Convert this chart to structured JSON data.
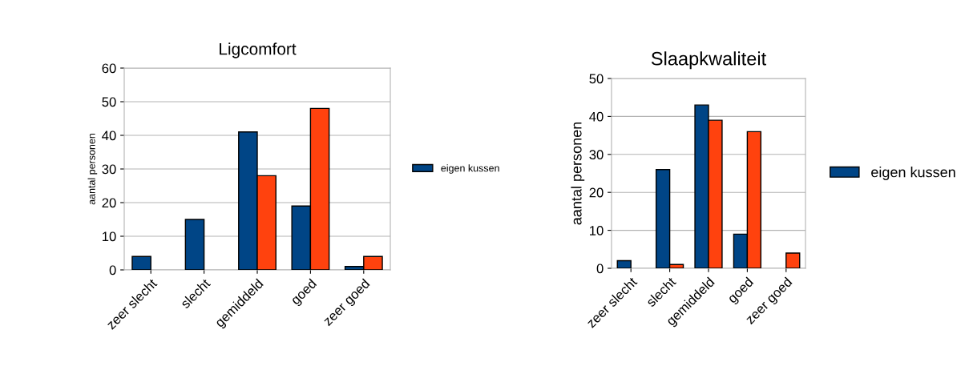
{
  "chart_data": [
    {
      "type": "bar",
      "title": "Ligcomfort",
      "ylabel": "aantal personen",
      "categories": [
        "zeer slecht",
        "slecht",
        "gemiddeld",
        "goed",
        "zeer goed"
      ],
      "series": [
        {
          "name": "eigen kussen",
          "color": "#004586",
          "values": [
            4,
            15,
            41,
            19,
            1
          ]
        },
        {
          "color": "#ff420e",
          "values": [
            null,
            null,
            28,
            48,
            4
          ]
        }
      ],
      "ylim": [
        0,
        60
      ],
      "yticks": [
        0,
        10,
        20,
        30,
        40,
        50,
        60
      ],
      "grid": "y",
      "legend": "right"
    },
    {
      "type": "bar",
      "title": "Slaapkwaliteit",
      "ylabel": "aantal personen",
      "categories": [
        "zeer slecht",
        "slecht",
        "gemiddeld",
        "goed",
        "zeer goed"
      ],
      "series": [
        {
          "name": "eigen kussen",
          "color": "#004586",
          "values": [
            2,
            26,
            43,
            9,
            null
          ]
        },
        {
          "color": "#ff420e",
          "values": [
            null,
            1,
            39,
            36,
            4
          ]
        }
      ],
      "ylim": [
        0,
        50
      ],
      "yticks": [
        0,
        10,
        20,
        30,
        40,
        50
      ],
      "grid": "y",
      "legend": "right"
    }
  ]
}
